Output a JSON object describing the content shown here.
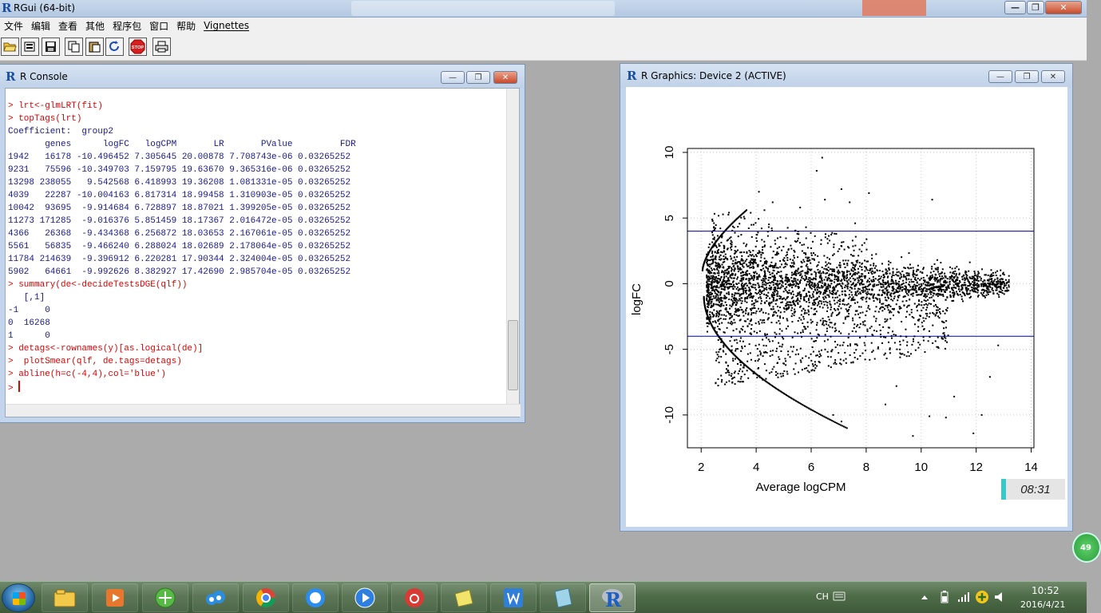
{
  "app": {
    "title": "RGui (64-bit)",
    "caption_buttons": [
      "—",
      "❐",
      "✕"
    ]
  },
  "menu": [
    "文件",
    "编辑",
    "查看",
    "其他",
    "程序包",
    "窗口",
    "帮助",
    "Vignettes"
  ],
  "toolbar": {
    "stop_label": "STOP"
  },
  "console": {
    "title": "R Console",
    "lines": [
      {
        "type": "cmd",
        "text": "> lrt<-glmLRT(fit)"
      },
      {
        "type": "cmd",
        "text": "> topTags(lrt)"
      },
      {
        "type": "out",
        "text": "Coefficient:  group2"
      },
      {
        "type": "out",
        "text": "       genes      logFC   logCPM       LR       PValue         FDR"
      },
      {
        "type": "out",
        "text": "1942   16178 -10.496452 7.305645 20.00878 7.708743e-06 0.03265252"
      },
      {
        "type": "out",
        "text": "9231   75596 -10.349703 7.159795 19.63670 9.365316e-06 0.03265252"
      },
      {
        "type": "out",
        "text": "13298 238055   9.542568 6.418993 19.36208 1.081331e-05 0.03265252"
      },
      {
        "type": "out",
        "text": "4039   22287 -10.004163 6.817314 18.99458 1.310903e-05 0.03265252"
      },
      {
        "type": "out",
        "text": "10042  93695  -9.914684 6.728897 18.87021 1.399205e-05 0.03265252"
      },
      {
        "type": "out",
        "text": "11273 171285  -9.016376 5.851459 18.17367 2.016472e-05 0.03265252"
      },
      {
        "type": "out",
        "text": "4366   26368  -9.434368 6.256872 18.03653 2.167061e-05 0.03265252"
      },
      {
        "type": "out",
        "text": "5561   56835  -9.466240 6.288024 18.02689 2.178064e-05 0.03265252"
      },
      {
        "type": "out",
        "text": "11784 214639  -9.396912 6.220281 17.90344 2.324004e-05 0.03265252"
      },
      {
        "type": "out",
        "text": "5902   64661  -9.992626 8.382927 17.42690 2.985704e-05 0.03265252"
      },
      {
        "type": "cmd",
        "text": "> summary(de<-decideTestsDGE(qlf))"
      },
      {
        "type": "out",
        "text": "   [,1]"
      },
      {
        "type": "out",
        "text": "-1     0"
      },
      {
        "type": "out",
        "text": "0  16268"
      },
      {
        "type": "out",
        "text": "1      0"
      },
      {
        "type": "cmd",
        "text": "> detags<-rownames(y)[as.logical(de)]"
      },
      {
        "type": "cmd",
        "text": ">  plotSmear(qlf, de.tags=detags)"
      },
      {
        "type": "cmd",
        "text": "> abline(h=c(-4,4),col='blue')"
      },
      {
        "type": "prompt",
        "text": "> "
      }
    ]
  },
  "graphics": {
    "title": "R Graphics: Device 2 (ACTIVE)"
  },
  "chart_data": {
    "type": "scatter",
    "title": "",
    "xlabel": "Average logCPM",
    "ylabel": "logFC",
    "xlim": [
      1.5,
      14.1
    ],
    "ylim": [
      -12.5,
      10.3
    ],
    "xticks": [
      "2",
      "4",
      "6",
      "8",
      "10",
      "12",
      "14"
    ],
    "yticks": [
      "-10",
      "-5",
      "0",
      "5",
      "10"
    ],
    "hlines": [
      -4,
      4
    ],
    "hline_color": "#00008b",
    "point_color": "#000000",
    "grid": true,
    "grid_style": "dotted",
    "outliers": [
      [
        6.4,
        9.6
      ],
      [
        7.1,
        7.2
      ],
      [
        7.4,
        6.2
      ],
      [
        8.1,
        6.9
      ],
      [
        6.5,
        6.4
      ],
      [
        10.4,
        6.4
      ],
      [
        7.6,
        4.6
      ],
      [
        4.1,
        7.0
      ],
      [
        4.6,
        6.2
      ],
      [
        5.6,
        5.8
      ],
      [
        3.8,
        5.4
      ],
      [
        6.2,
        8.6
      ],
      [
        4.3,
        5.6
      ],
      [
        9.7,
        -11.6
      ],
      [
        11.9,
        -11.4
      ],
      [
        10.3,
        -10.1
      ],
      [
        10.9,
        -10.2
      ],
      [
        12.2,
        -10.0
      ],
      [
        12.8,
        -4.7
      ],
      [
        8.7,
        -9.2
      ],
      [
        9.1,
        -7.8
      ],
      [
        11.2,
        -8.6
      ],
      [
        12.5,
        -7.1
      ],
      [
        7.1,
        -10.5
      ],
      [
        6.8,
        -10.0
      ]
    ]
  },
  "widgets": {
    "clock_overlay": "08:31",
    "badge": "49"
  },
  "taskbar": {
    "lang": "CH",
    "time": "10:52",
    "date": "2016/4/21",
    "items": [
      "file-explorer",
      "media-player",
      "browser-360",
      "baidu-cloud",
      "chrome",
      "baidu-du",
      "video-player",
      "netease-music",
      "yellow-app",
      "wps-writer",
      "notebook-app",
      "r-gui"
    ]
  }
}
